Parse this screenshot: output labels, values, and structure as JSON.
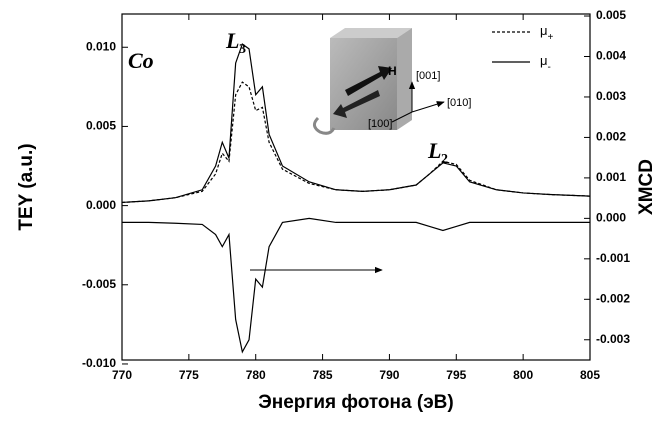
{
  "chart_data": {
    "type": "line",
    "xlabel": "Энергия фотона (эВ)",
    "ylabel": "TEY (a.u.)",
    "y2label": "XMCD",
    "x": [
      770,
      772,
      774,
      776,
      777,
      777.5,
      778,
      778.5,
      779,
      779.5,
      780,
      780.5,
      781,
      782,
      784,
      786,
      788,
      790,
      792,
      793,
      794,
      795,
      796,
      798,
      800,
      802,
      805
    ],
    "series": [
      {
        "name": "μ+",
        "color": "#000000",
        "dash": true,
        "values": [
          0.0002,
          0.0003,
          0.0005,
          0.0009,
          0.002,
          0.0033,
          0.0028,
          0.007,
          0.0078,
          0.0075,
          0.006,
          0.0062,
          0.004,
          0.0023,
          0.0014,
          0.001,
          0.0009,
          0.001,
          0.0013,
          0.002,
          0.0028,
          0.0026,
          0.0016,
          0.001,
          0.0008,
          0.0007,
          0.0006
        ]
      },
      {
        "name": "μ-",
        "color": "#000000",
        "dash": false,
        "values": [
          0.0002,
          0.0003,
          0.0005,
          0.001,
          0.0025,
          0.004,
          0.003,
          0.009,
          0.0102,
          0.0099,
          0.007,
          0.0075,
          0.0045,
          0.0025,
          0.0015,
          0.001,
          0.0009,
          0.001,
          0.0013,
          0.002,
          0.0027,
          0.0025,
          0.0015,
          0.001,
          0.0008,
          0.0007,
          0.0006
        ]
      },
      {
        "color": "#000000",
        "dash": false,
        "axis": "y2",
        "values": [
          -0.0001,
          -0.0001,
          -0.00012,
          -0.00015,
          -0.0004,
          -0.0007,
          -0.0004,
          -0.0025,
          -0.0033,
          -0.003,
          -0.0015,
          -0.0017,
          -0.0007,
          -0.0001,
          0,
          -0.0001,
          -0.0001,
          -0.0001,
          -0.0001,
          -0.0002,
          -0.0003,
          -0.0002,
          -0.0001,
          -0.0001,
          -0.0001,
          -0.0001,
          -0.0001
        ]
      }
    ],
    "xlim": [
      770,
      805
    ],
    "xticks": [
      770,
      775,
      780,
      785,
      790,
      795,
      800,
      805
    ],
    "ylim": [
      -0.00975,
      0.0121
    ],
    "yticks": [
      {
        "value": -0.01,
        "label": "-0.010"
      },
      -0.005,
      {
        "value": 0,
        "label": "0.000"
      },
      0.005,
      {
        "value": 0.01,
        "label": "0.010"
      }
    ],
    "y2lim": [
      -0.0035,
      0.00505
    ],
    "y2ticks": [
      -0.003,
      -0.002,
      -0.001,
      {
        "value": 0,
        "label": "0.000"
      },
      0.001,
      0.002,
      0.003,
      0.004,
      0.005
    ],
    "annotations": [
      {
        "text": "Co"
      },
      {
        "text": "L",
        "subscript": "3"
      },
      {
        "text": "L",
        "subscript": "2"
      }
    ],
    "inset": {
      "field": "H",
      "axes": [
        "[001]",
        "[010]",
        "[100]"
      ]
    }
  }
}
